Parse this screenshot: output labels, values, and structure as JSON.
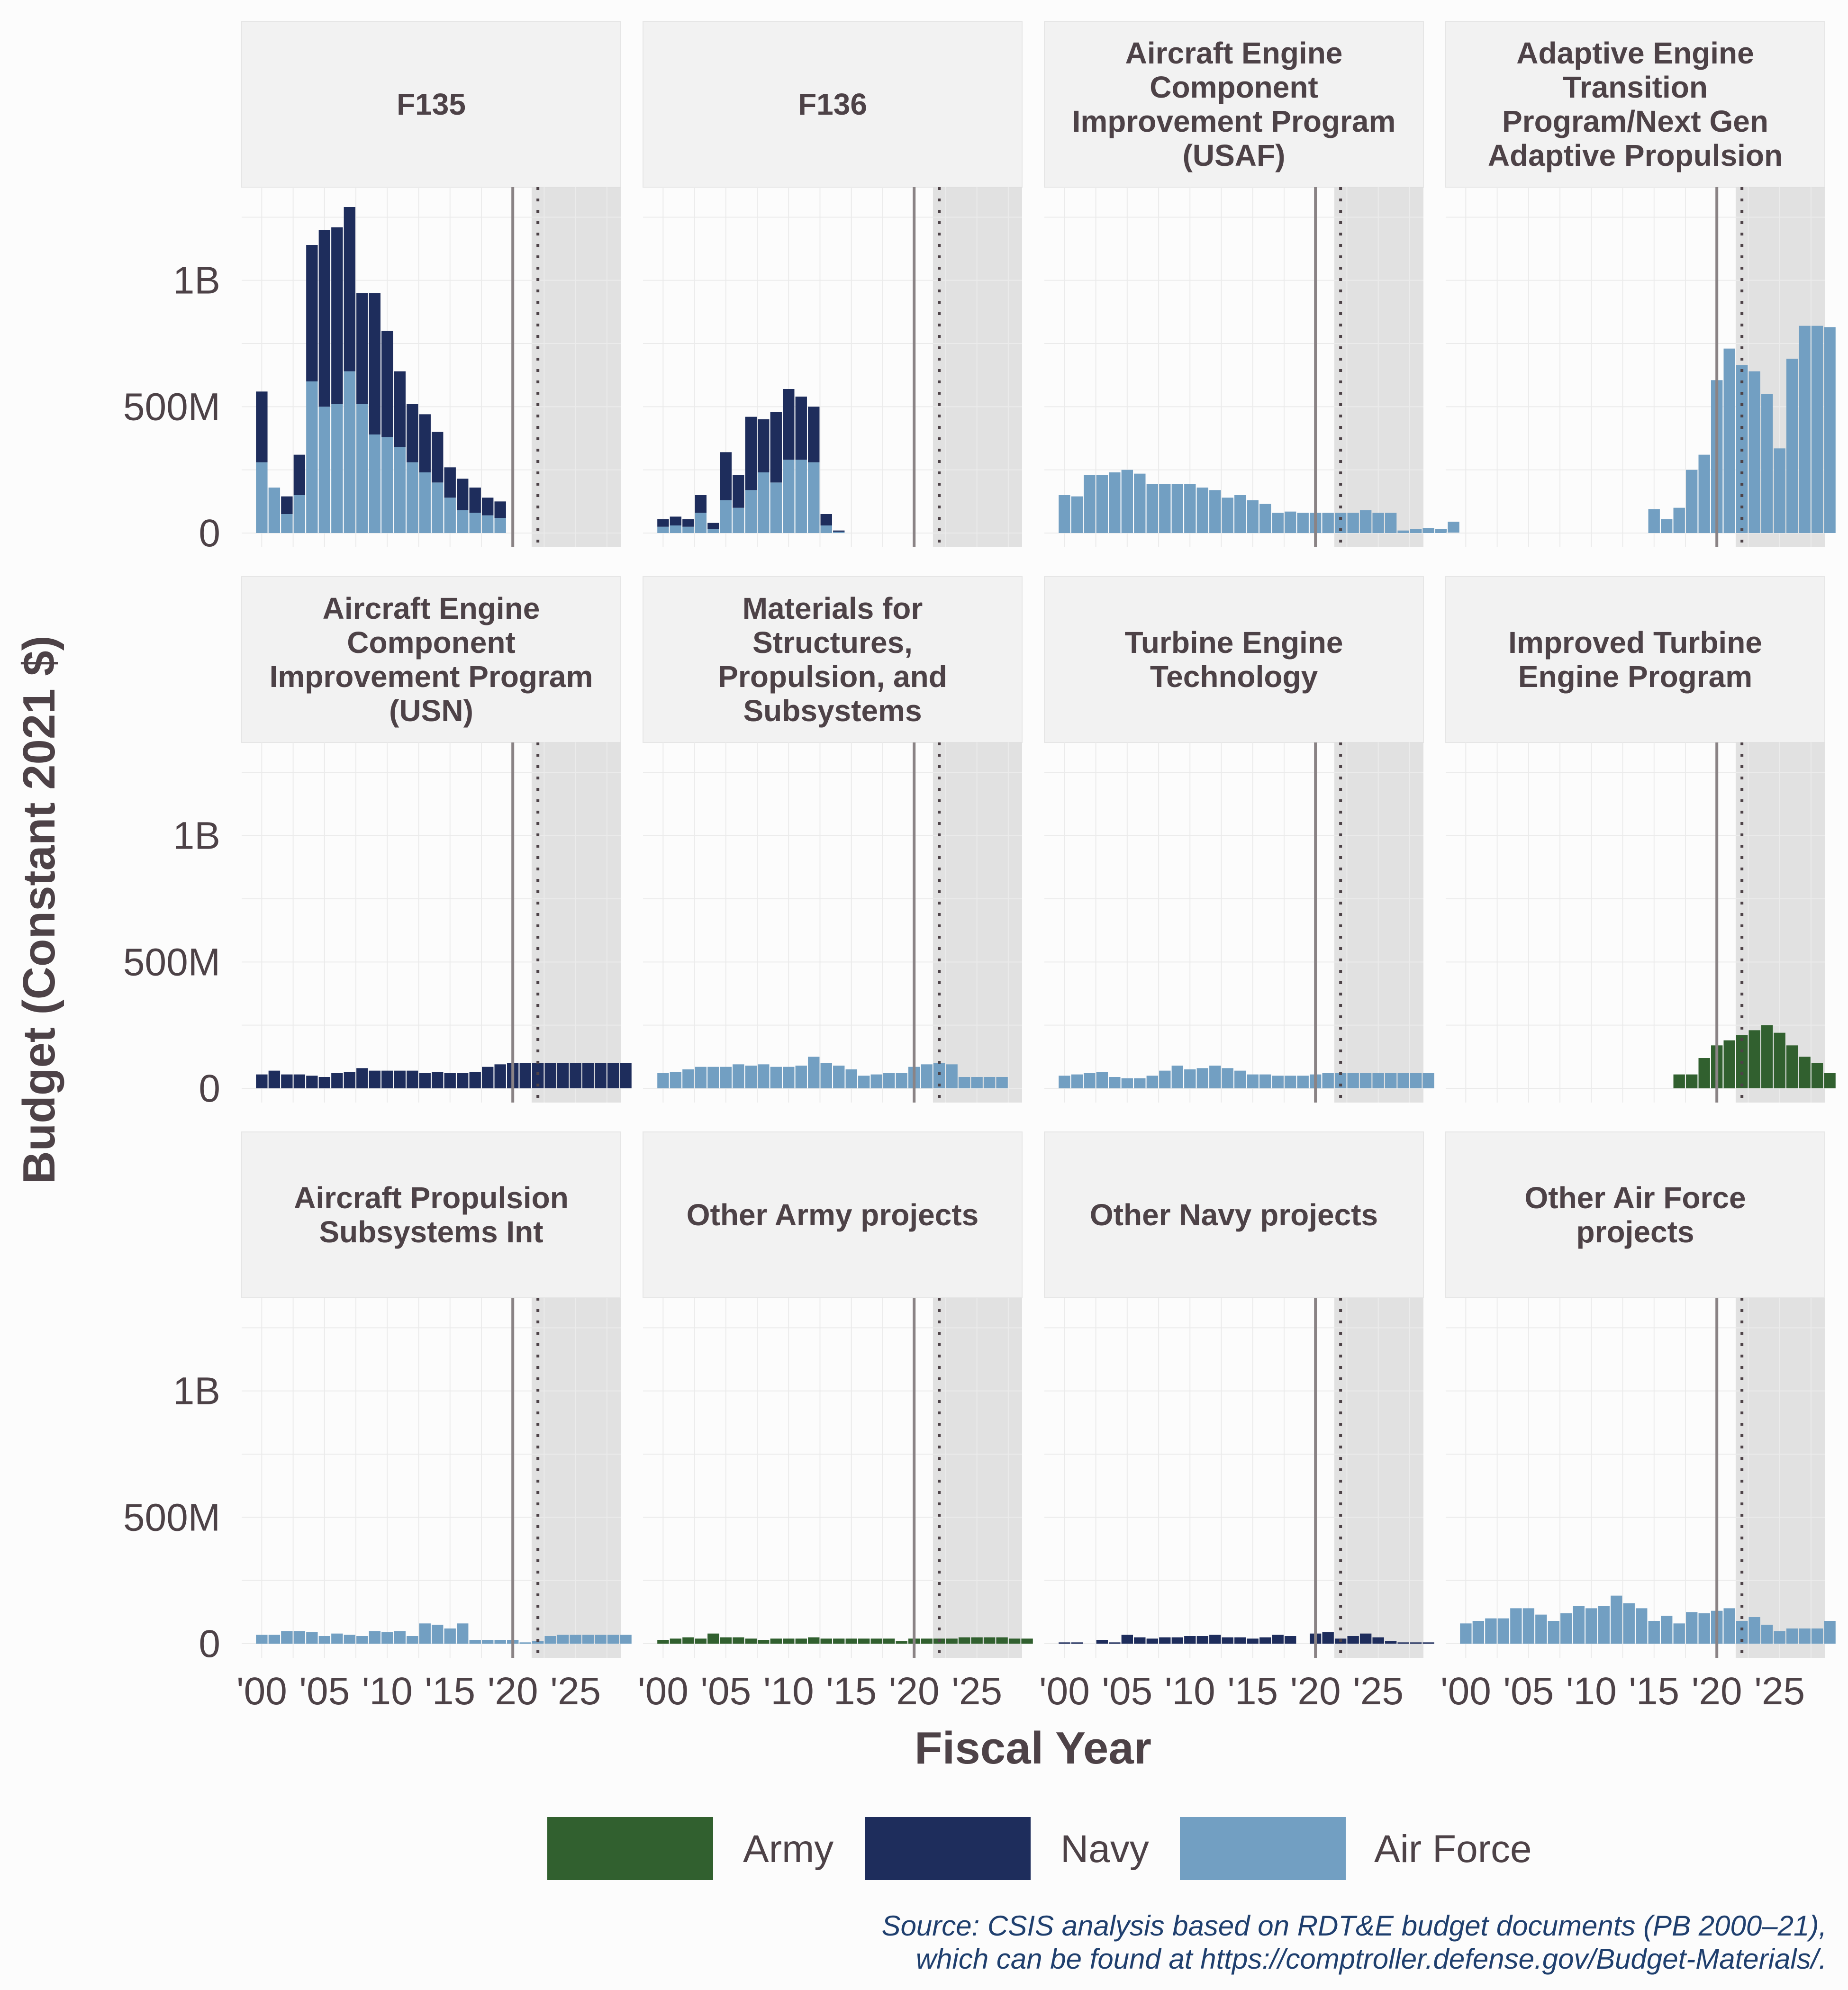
{
  "chart_data": {
    "type": "bar",
    "stacked": true,
    "ylabel": "Budget (Constant 2021 $)",
    "xlabel": "Fiscal Year",
    "ylim": [
      0,
      1350000000
    ],
    "yticks": [
      {
        "value": 0,
        "label": "0"
      },
      {
        "value": 500000000,
        "label": "500M"
      },
      {
        "value": 1000000000,
        "label": "1B"
      }
    ],
    "xticks": [
      {
        "value": 2000,
        "label": "'00"
      },
      {
        "value": 2005,
        "label": "'05"
      },
      {
        "value": 2010,
        "label": "'10"
      },
      {
        "value": 2015,
        "label": "'15"
      },
      {
        "value": 2020,
        "label": "'20"
      },
      {
        "value": 2025,
        "label": "'25"
      }
    ],
    "xlim": [
      1998.4,
      2028.6
    ],
    "actual_year_line": 2020,
    "future_year_line": 2022,
    "projection_start": 2021.5,
    "legend": {
      "position": "bottom",
      "entries": [
        {
          "key": "army",
          "name": "Army",
          "color": "#31602f"
        },
        {
          "key": "navy",
          "name": "Navy",
          "color": "#1e2d5c"
        },
        {
          "key": "af",
          "name": "Air Force",
          "color": "#729fc2"
        }
      ]
    },
    "source": [
      "Source: CSIS analysis based on RDT&E budget documents (PB 2000–21),",
      "which can be found at https://comptroller.defense.gov/Budget-Materials/."
    ],
    "panels": [
      {
        "title": [
          "F135"
        ],
        "start": 2000,
        "series": {
          "af": [
            280,
            180,
            75,
            150,
            600,
            500,
            510,
            640,
            510,
            390,
            380,
            340,
            280,
            240,
            200,
            140,
            90,
            80,
            70,
            60
          ],
          "navy": [
            280,
            0,
            70,
            160,
            540,
            700,
            700,
            650,
            440,
            560,
            420,
            300,
            230,
            230,
            200,
            120,
            125,
            100,
            70,
            65
          ]
        }
      },
      {
        "title": [
          "F136"
        ],
        "start": 2000,
        "series": {
          "af": [
            25,
            30,
            25,
            80,
            15,
            130,
            100,
            170,
            240,
            200,
            290,
            290,
            280,
            30,
            5
          ],
          "navy": [
            30,
            35,
            30,
            70,
            25,
            190,
            130,
            290,
            210,
            280,
            280,
            250,
            220,
            45,
            5
          ]
        }
      },
      {
        "title": [
          "Aircraft Engine",
          "Component",
          "Improvement Program",
          "(USAF)"
        ],
        "start": 2000,
        "series": {
          "af": [
            150,
            145,
            230,
            230,
            240,
            250,
            235,
            195,
            195,
            195,
            195,
            180,
            170,
            140,
            150,
            130,
            115,
            80,
            85,
            80,
            80,
            80,
            80,
            80,
            90,
            80,
            80,
            10,
            15,
            20,
            15,
            45
          ]
        }
      },
      {
        "title": [
          "Adaptive Engine",
          "Transition",
          "Program/Next Gen",
          "Adaptive Propulsion"
        ],
        "start": 2000,
        "series": {
          "af": [
            0,
            0,
            0,
            0,
            0,
            0,
            0,
            0,
            0,
            0,
            0,
            0,
            0,
            0,
            0,
            95,
            55,
            100,
            250,
            310,
            605,
            730,
            665,
            640,
            550,
            335,
            690,
            820,
            820,
            815
          ]
        }
      },
      {
        "title": [
          "Aircraft Engine",
          "Component",
          "Improvement Program",
          "(USN)"
        ],
        "start": 2000,
        "series": {
          "navy": [
            55,
            70,
            55,
            55,
            50,
            45,
            60,
            65,
            80,
            70,
            70,
            70,
            70,
            60,
            65,
            60,
            60,
            65,
            85,
            95,
            100,
            100,
            100,
            100,
            100,
            100,
            100,
            100,
            100,
            100
          ]
        }
      },
      {
        "title": [
          "Materials for",
          "Structures,",
          "Propulsion, and",
          "Subsystems"
        ],
        "start": 2000,
        "series": {
          "af": [
            60,
            65,
            75,
            85,
            85,
            85,
            95,
            90,
            95,
            85,
            85,
            90,
            125,
            100,
            90,
            75,
            50,
            55,
            60,
            60,
            85,
            95,
            100,
            95,
            45,
            45,
            45,
            45
          ]
        }
      },
      {
        "title": [
          "Turbine Engine",
          "Technology"
        ],
        "start": 2000,
        "series": {
          "af": [
            50,
            55,
            60,
            65,
            45,
            40,
            40,
            50,
            70,
            90,
            75,
            80,
            90,
            80,
            70,
            55,
            55,
            50,
            50,
            50,
            55,
            60,
            60,
            60,
            60,
            60,
            60,
            60,
            60,
            60
          ]
        }
      },
      {
        "title": [
          "Improved Turbine",
          "Engine Program"
        ],
        "start": 2000,
        "series": {
          "army": [
            0,
            0,
            0,
            0,
            0,
            0,
            0,
            0,
            0,
            0,
            0,
            0,
            0,
            0,
            0,
            0,
            0,
            55,
            55,
            120,
            170,
            190,
            210,
            230,
            250,
            220,
            170,
            125,
            100,
            60
          ]
        }
      },
      {
        "title": [
          "Aircraft Propulsion",
          "Subsystems Int"
        ],
        "start": 2000,
        "series": {
          "af": [
            35,
            35,
            50,
            50,
            45,
            30,
            40,
            35,
            30,
            50,
            45,
            50,
            30,
            80,
            75,
            60,
            80,
            15,
            15,
            15,
            15,
            5,
            10,
            30,
            35,
            35,
            35,
            35,
            35,
            35
          ]
        }
      },
      {
        "title": [
          "Other Army projects"
        ],
        "start": 2000,
        "series": {
          "army": [
            15,
            20,
            25,
            20,
            40,
            25,
            25,
            20,
            15,
            20,
            20,
            20,
            25,
            20,
            20,
            20,
            20,
            20,
            20,
            10,
            20,
            20,
            20,
            20,
            25,
            25,
            25,
            25,
            20,
            20
          ]
        }
      },
      {
        "title": [
          "Other Navy projects"
        ],
        "start": 2000,
        "series": {
          "navy": [
            5,
            5,
            0,
            15,
            5,
            35,
            25,
            20,
            25,
            25,
            30,
            30,
            35,
            25,
            25,
            20,
            25,
            35,
            30,
            0,
            40,
            45,
            20,
            30,
            40,
            25,
            10,
            5,
            5,
            5
          ]
        }
      },
      {
        "title": [
          "Other Air Force",
          "projects"
        ],
        "start": 2000,
        "series": {
          "af": [
            80,
            90,
            100,
            100,
            140,
            140,
            115,
            90,
            120,
            150,
            140,
            150,
            190,
            160,
            140,
            90,
            110,
            80,
            125,
            120,
            130,
            140,
            90,
            105,
            75,
            50,
            60,
            60,
            60,
            90
          ]
        }
      }
    ]
  }
}
